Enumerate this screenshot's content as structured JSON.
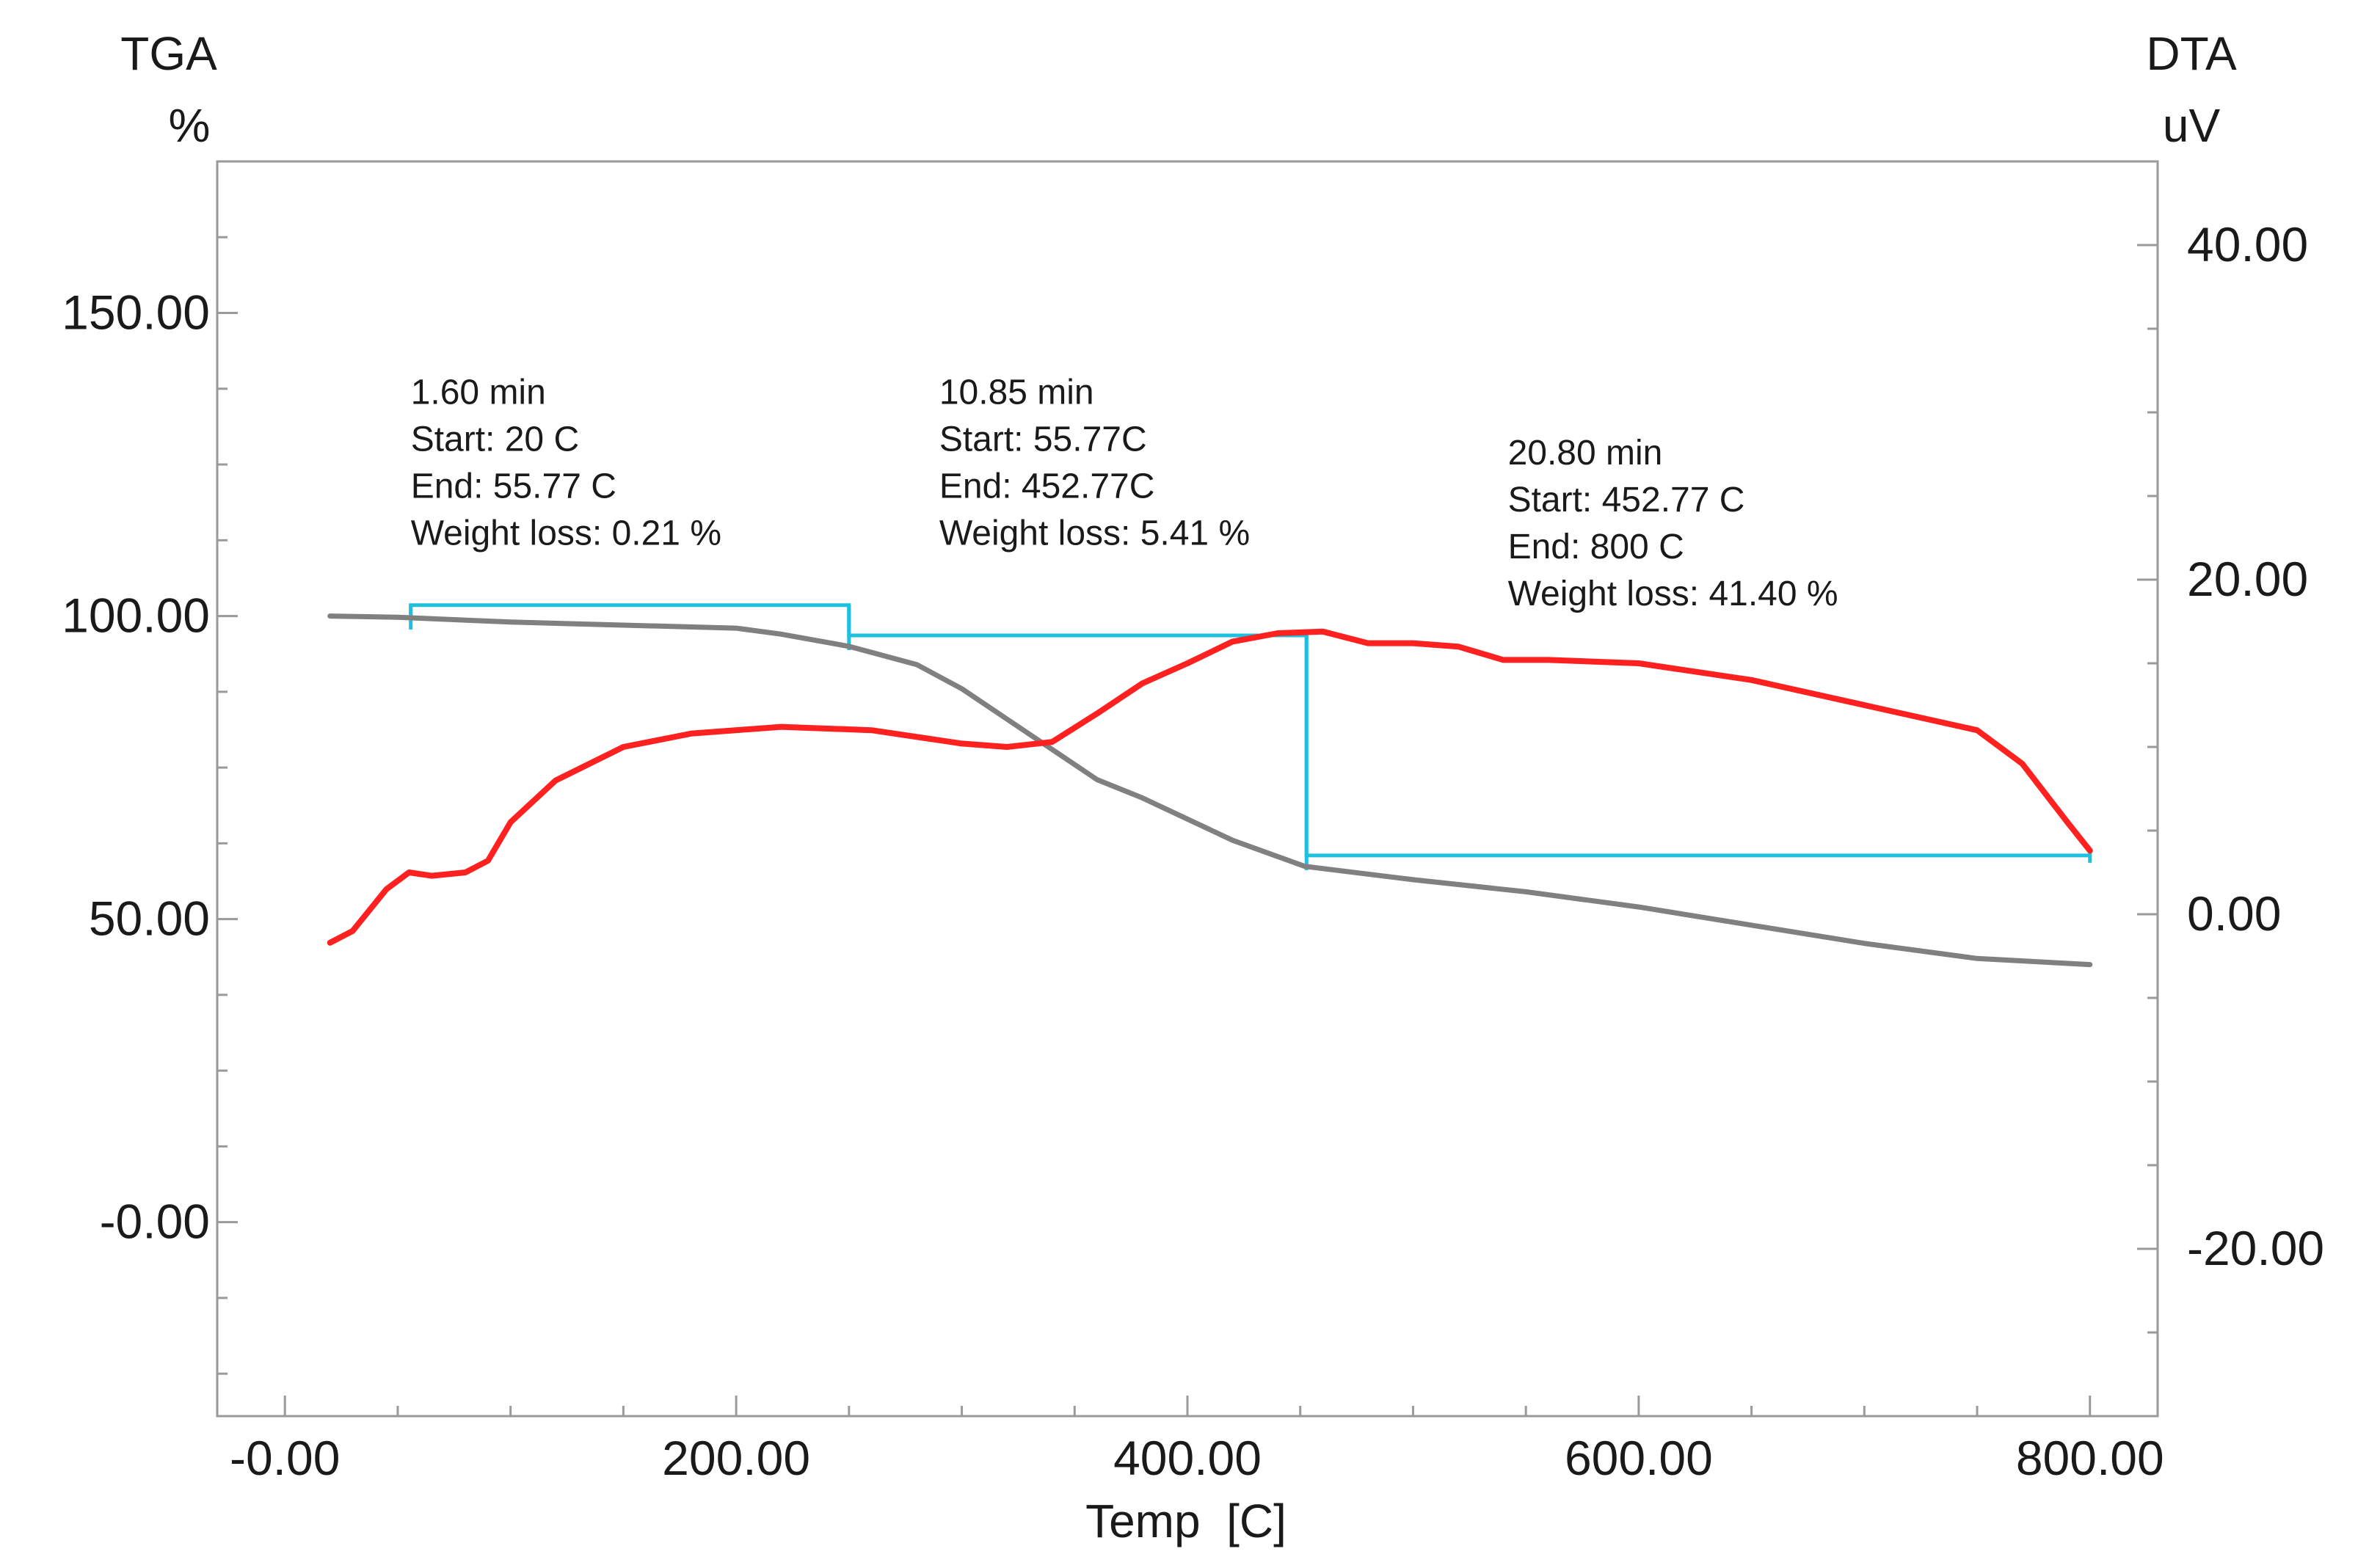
{
  "chart_data": {
    "type": "line",
    "title": "",
    "xlabel": "Temp  [C]",
    "left_axis": {
      "title": "TGA",
      "unit": "%"
    },
    "right_axis": {
      "title": "DTA",
      "unit": "uV"
    },
    "xlim": [
      -30,
      830
    ],
    "ylim_left": [
      -32,
      175
    ],
    "ylim_right": [
      -30,
      45
    ],
    "x_ticks": [
      {
        "value": 0,
        "label": "-0.00"
      },
      {
        "value": 200,
        "label": "200.00"
      },
      {
        "value": 400,
        "label": "400.00"
      },
      {
        "value": 600,
        "label": "600.00"
      },
      {
        "value": 800,
        "label": "800.00"
      }
    ],
    "y_left_ticks": [
      {
        "value": 0,
        "label": "-0.00"
      },
      {
        "value": 50,
        "label": "50.00"
      },
      {
        "value": 100,
        "label": "100.00"
      },
      {
        "value": 150,
        "label": "150.00"
      }
    ],
    "y_right_ticks": [
      {
        "value": -20,
        "label": "-20.00"
      },
      {
        "value": 0,
        "label": "0.00"
      },
      {
        "value": 20,
        "label": "20.00"
      },
      {
        "value": 40,
        "label": "40.00"
      }
    ],
    "series": [
      {
        "name": "TGA",
        "axis": "left",
        "color": "#808080",
        "x": [
          20,
          50,
          100,
          150,
          200,
          220,
          250,
          280,
          300,
          320,
          340,
          360,
          380,
          400,
          420,
          452,
          500,
          550,
          600,
          650,
          700,
          750,
          800
        ],
        "y": [
          100,
          99.8,
          99,
          98.5,
          98,
          97,
          95,
          92,
          88,
          83,
          78,
          73,
          70,
          66.5,
          63,
          58.7,
          56.5,
          54.5,
          52,
          49,
          46,
          43.5,
          42.5
        ]
      },
      {
        "name": "DTA",
        "axis": "right",
        "color": "#ff2020",
        "x": [
          20,
          30,
          45,
          55,
          65,
          80,
          90,
          100,
          120,
          150,
          180,
          220,
          260,
          300,
          320,
          340,
          360,
          380,
          400,
          420,
          440,
          460,
          480,
          500,
          520,
          540,
          560,
          600,
          650,
          700,
          750,
          770,
          790,
          800
        ],
        "y": [
          -1.7,
          -1,
          1.5,
          2.5,
          2.3,
          2.5,
          3.2,
          5.5,
          8,
          10,
          10.8,
          11.2,
          11,
          10.2,
          10,
          10.3,
          12,
          13.8,
          15,
          16.3,
          16.8,
          16.9,
          16.2,
          16.2,
          16,
          15.2,
          15.2,
          15,
          14,
          12.5,
          11,
          9,
          5.5,
          3.8
        ]
      }
    ],
    "step_line": {
      "name": "TGA weight loss steps",
      "color": "#1ec0e0",
      "markers": [
        {
          "temp": 55.77,
          "tga_from": 100.2,
          "tga_to": 101.8
        },
        {
          "temp": 250,
          "tga_from": 101.8,
          "tga_to": 96.8
        },
        {
          "temp": 452.77,
          "tga_from": 96.8,
          "tga_to": 60.5
        }
      ],
      "end_temp": 800
    },
    "annotations": [
      {
        "anchor_temp": 55.77,
        "anchor_tga": 135,
        "lines": [
          "1.60 min",
          "Start: 20 C",
          "End: 55.77 C",
          "Weight loss: 0.21 %"
        ]
      },
      {
        "anchor_temp": 290,
        "anchor_tga": 135,
        "lines": [
          "10.85 min",
          "Start: 55.77C",
          "End: 452.77C",
          "Weight loss: 5.41 %"
        ]
      },
      {
        "anchor_temp": 542,
        "anchor_tga": 125,
        "lines": [
          "20.80 min",
          "Start: 452.77 C",
          "End: 800 C",
          "Weight loss: 41.40 %"
        ]
      }
    ]
  }
}
